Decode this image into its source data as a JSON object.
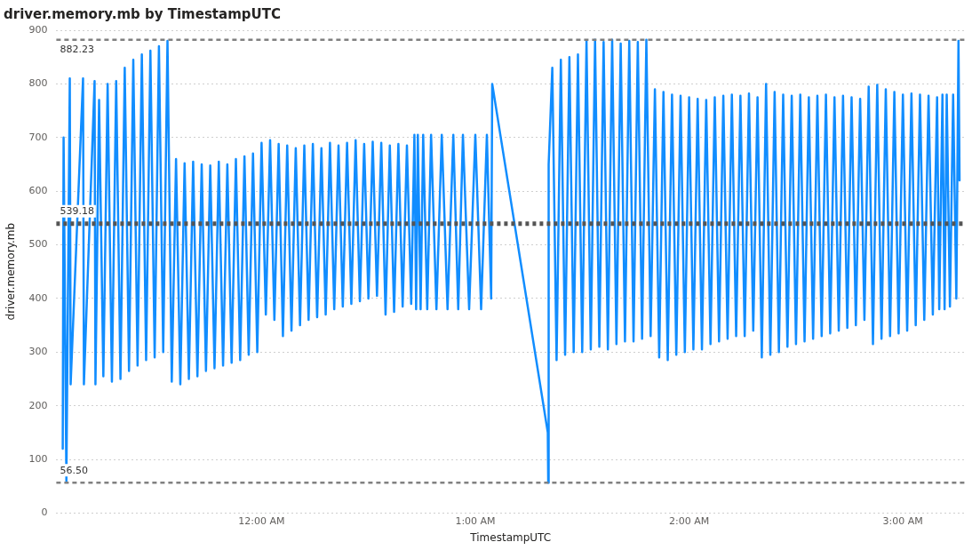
{
  "chart_data": {
    "type": "line",
    "title": "driver.memory.mb by TimestampUTC",
    "xlabel": "TimestampUTC",
    "ylabel": "driver.memory.mb",
    "xlim": [
      -0.96,
      3.29
    ],
    "xticks": [
      {
        "value": 0,
        "label": "12:00 AM"
      },
      {
        "value": 1,
        "label": "1:00 AM"
      },
      {
        "value": 2,
        "label": "2:00 AM"
      },
      {
        "value": 3,
        "label": "3:00 AM"
      }
    ],
    "ylim": [
      0,
      900
    ],
    "yticks": [
      0,
      100,
      200,
      300,
      400,
      500,
      600,
      700,
      800,
      900
    ],
    "grid": "y",
    "legend": false,
    "ref_lines": [
      {
        "axis": "y",
        "value": 882.23,
        "label": "882.23",
        "color": "#808080",
        "line_style": "dashed"
      },
      {
        "axis": "y",
        "value": 539.18,
        "label": "539.18",
        "color": "#555555",
        "line_style": "dotted"
      },
      {
        "axis": "y",
        "value": 56.5,
        "label": "56.50",
        "color": "#808080",
        "line_style": "dashed"
      }
    ],
    "series": [
      {
        "color": "#118dff",
        "x": [
          -0.93,
          -0.926,
          -0.913,
          -0.897,
          -0.893,
          -0.835,
          -0.831,
          -0.781,
          -0.777,
          -0.76,
          -0.74,
          -0.72,
          -0.7,
          -0.68,
          -0.66,
          -0.64,
          -0.62,
          -0.6,
          -0.58,
          -0.56,
          -0.54,
          -0.52,
          -0.5,
          -0.48,
          -0.46,
          -0.44,
          -0.42,
          -0.4,
          -0.38,
          -0.36,
          -0.34,
          -0.32,
          -0.3,
          -0.28,
          -0.26,
          -0.24,
          -0.22,
          -0.2,
          -0.18,
          -0.16,
          -0.14,
          -0.12,
          -0.1,
          -0.08,
          -0.06,
          -0.04,
          -0.02,
          0.0,
          0.02,
          0.04,
          0.06,
          0.08,
          0.1,
          0.12,
          0.14,
          0.16,
          0.18,
          0.2,
          0.22,
          0.24,
          0.26,
          0.28,
          0.3,
          0.32,
          0.34,
          0.36,
          0.38,
          0.4,
          0.42,
          0.44,
          0.46,
          0.48,
          0.5,
          0.52,
          0.54,
          0.56,
          0.58,
          0.6,
          0.62,
          0.64,
          0.66,
          0.68,
          0.7,
          0.715,
          0.723,
          0.731,
          0.744,
          0.756,
          0.775,
          0.793,
          0.818,
          0.843,
          0.87,
          0.897,
          0.92,
          0.942,
          0.971,
          1.0,
          1.027,
          1.054,
          1.074,
          1.079,
          1.339,
          1.341,
          1.343,
          1.36,
          1.38,
          1.4,
          1.42,
          1.44,
          1.46,
          1.48,
          1.5,
          1.52,
          1.54,
          1.56,
          1.58,
          1.6,
          1.62,
          1.64,
          1.66,
          1.68,
          1.7,
          1.72,
          1.74,
          1.76,
          1.78,
          1.8,
          1.82,
          1.84,
          1.86,
          1.88,
          1.9,
          1.92,
          1.94,
          1.96,
          1.98,
          2.0,
          2.02,
          2.04,
          2.06,
          2.08,
          2.1,
          2.12,
          2.14,
          2.16,
          2.18,
          2.2,
          2.22,
          2.24,
          2.26,
          2.28,
          2.3,
          2.32,
          2.34,
          2.36,
          2.38,
          2.4,
          2.42,
          2.44,
          2.46,
          2.48,
          2.5,
          2.52,
          2.54,
          2.56,
          2.58,
          2.6,
          2.62,
          2.64,
          2.66,
          2.68,
          2.7,
          2.72,
          2.74,
          2.76,
          2.78,
          2.8,
          2.82,
          2.84,
          2.86,
          2.88,
          2.9,
          2.92,
          2.94,
          2.96,
          2.98,
          3.0,
          3.02,
          3.04,
          3.06,
          3.08,
          3.1,
          3.12,
          3.14,
          3.16,
          3.17,
          3.185,
          3.195,
          3.205,
          3.22,
          3.235,
          3.25,
          3.26,
          3.265
        ],
        "values": [
          120,
          700,
          60,
          810,
          240,
          810,
          240,
          805,
          240,
          770,
          255,
          800,
          245,
          805,
          250,
          830,
          265,
          845,
          275,
          855,
          285,
          862,
          290,
          870,
          300,
          880,
          245,
          660,
          240,
          652,
          250,
          655,
          255,
          650,
          265,
          648,
          270,
          655,
          275,
          650,
          280,
          660,
          285,
          665,
          295,
          670,
          300,
          690,
          370,
          695,
          360,
          688,
          330,
          685,
          340,
          680,
          350,
          685,
          360,
          688,
          365,
          680,
          370,
          690,
          380,
          685,
          385,
          690,
          390,
          695,
          395,
          688,
          400,
          692,
          405,
          690,
          370,
          685,
          375,
          688,
          385,
          685,
          390,
          705,
          380,
          705,
          380,
          705,
          380,
          705,
          380,
          705,
          380,
          705,
          380,
          705,
          380,
          705,
          380,
          705,
          400,
          800,
          150,
          56.5,
          650,
          830,
          285,
          845,
          295,
          850,
          300,
          855,
          300,
          880,
          305,
          882,
          310,
          878,
          305,
          882,
          315,
          875,
          320,
          880,
          320,
          878,
          325,
          882,
          330,
          790,
          290,
          785,
          285,
          780,
          295,
          778,
          300,
          775,
          305,
          772,
          305,
          770,
          315,
          775,
          320,
          778,
          325,
          780,
          330,
          778,
          330,
          782,
          340,
          775,
          290,
          800,
          295,
          785,
          300,
          780,
          310,
          778,
          315,
          780,
          320,
          775,
          325,
          778,
          330,
          780,
          335,
          775,
          340,
          778,
          345,
          775,
          350,
          772,
          360,
          795,
          315,
          798,
          325,
          790,
          330,
          785,
          335,
          780,
          340,
          782,
          350,
          780,
          360,
          778,
          370,
          775,
          380,
          780,
          380,
          780,
          385,
          780,
          400,
          880,
          620
        ]
      }
    ]
  }
}
